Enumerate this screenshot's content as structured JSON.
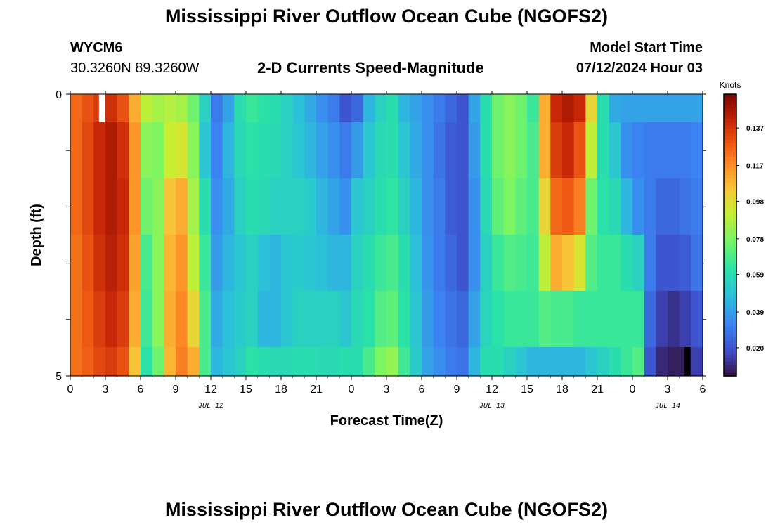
{
  "header": {
    "title": "Mississippi River Outflow Ocean Cube (NGOFS2)",
    "station": "WYCM6",
    "coordinates": "30.3260N  89.3260W",
    "subtitle": "2-D Currents Speed-Magnitude",
    "model_start_label": "Model Start Time",
    "model_start_value": "07/12/2024 Hour 03"
  },
  "footer": {
    "title": "Mississippi River Outflow Ocean Cube (NGOFS2)"
  },
  "chart_data": {
    "type": "heatmap",
    "title": "2-D Currents Speed-Magnitude",
    "xlabel": "Forecast Time(Z)",
    "ylabel": "Depth (ft)",
    "x_tick_labels": [
      "0",
      "3",
      "6",
      "9",
      "12",
      "15",
      "18",
      "21",
      "0",
      "3",
      "6",
      "9",
      "12",
      "15",
      "18",
      "21",
      "0",
      "3",
      "6"
    ],
    "x_hours_from_start": [
      0,
      3,
      6,
      9,
      12,
      15,
      18,
      21,
      24,
      27,
      30,
      33,
      36,
      39,
      42,
      45,
      48,
      51,
      54
    ],
    "xlim_hours": [
      0,
      54
    ],
    "date_labels": [
      {
        "label": "JUL 12",
        "hour": 12
      },
      {
        "label": "JUL 13",
        "hour": 36
      },
      {
        "label": "JUL 14",
        "hour": 51
      }
    ],
    "y_tick_labels": [
      "0",
      "5"
    ],
    "ylim_ft": [
      0,
      5
    ],
    "depth_levels_ft": [
      0.25,
      1.0,
      2.0,
      3.0,
      4.0,
      4.75
    ],
    "colorbar": {
      "label": "Knots",
      "tick_values": [
        0.02,
        0.039,
        0.059,
        0.078,
        0.098,
        0.117,
        0.137
      ],
      "tick_labels": [
        "0.020",
        "0.039",
        "0.059",
        "0.078",
        "0.098",
        "0.117",
        "0.137"
      ],
      "range": [
        0.005,
        0.155
      ]
    },
    "knots_by_hour": [
      {
        "h": 0,
        "v": [
          0.125,
          0.125,
          0.125,
          0.123,
          0.123,
          0.123
        ]
      },
      {
        "h": 1,
        "v": [
          0.13,
          0.132,
          0.132,
          0.13,
          0.128,
          0.127
        ]
      },
      {
        "h": 2,
        "v": [
          0.135,
          0.14,
          0.14,
          0.138,
          0.135,
          0.132
        ]
      },
      {
        "h": 3,
        "v": [
          0.138,
          0.145,
          0.145,
          0.143,
          0.14,
          0.135
        ]
      },
      {
        "h": 4,
        "v": [
          0.13,
          0.138,
          0.14,
          0.138,
          0.135,
          0.13
        ]
      },
      {
        "h": 5,
        "v": [
          0.11,
          0.115,
          0.115,
          0.112,
          0.11,
          0.105
        ]
      },
      {
        "h": 6,
        "v": [
          0.09,
          0.08,
          0.075,
          0.068,
          0.066,
          0.062
        ]
      },
      {
        "h": 7,
        "v": [
          0.085,
          0.078,
          0.08,
          0.08,
          0.08,
          0.075
        ]
      },
      {
        "h": 8,
        "v": [
          0.088,
          0.092,
          0.105,
          0.108,
          0.11,
          0.108
        ]
      },
      {
        "h": 9,
        "v": [
          0.085,
          0.095,
          0.11,
          0.115,
          0.118,
          0.12
        ]
      },
      {
        "h": 10,
        "v": [
          0.075,
          0.08,
          0.085,
          0.09,
          0.1,
          0.11
        ]
      },
      {
        "h": 11,
        "v": [
          0.055,
          0.05,
          0.06,
          0.065,
          0.068,
          0.068
        ]
      },
      {
        "h": 12,
        "v": [
          0.03,
          0.032,
          0.035,
          0.038,
          0.042,
          0.045
        ]
      },
      {
        "h": 13,
        "v": [
          0.04,
          0.045,
          0.042,
          0.045,
          0.048,
          0.05
        ]
      },
      {
        "h": 14,
        "v": [
          0.06,
          0.058,
          0.055,
          0.05,
          0.052,
          0.055
        ]
      },
      {
        "h": 15,
        "v": [
          0.065,
          0.062,
          0.06,
          0.055,
          0.055,
          0.062
        ]
      },
      {
        "h": 16,
        "v": [
          0.062,
          0.06,
          0.058,
          0.048,
          0.045,
          0.06
        ]
      },
      {
        "h": 17,
        "v": [
          0.06,
          0.058,
          0.055,
          0.045,
          0.045,
          0.058
        ]
      },
      {
        "h": 18,
        "v": [
          0.055,
          0.055,
          0.055,
          0.05,
          0.05,
          0.058
        ]
      },
      {
        "h": 19,
        "v": [
          0.048,
          0.05,
          0.055,
          0.052,
          0.055,
          0.06
        ]
      },
      {
        "h": 20,
        "v": [
          0.042,
          0.045,
          0.052,
          0.05,
          0.055,
          0.06
        ]
      },
      {
        "h": 21,
        "v": [
          0.035,
          0.04,
          0.045,
          0.048,
          0.055,
          0.058
        ]
      },
      {
        "h": 22,
        "v": [
          0.03,
          0.035,
          0.04,
          0.045,
          0.055,
          0.058
        ]
      },
      {
        "h": 23,
        "v": [
          0.02,
          0.03,
          0.035,
          0.045,
          0.05,
          0.06
        ]
      },
      {
        "h": 24,
        "v": [
          0.025,
          0.038,
          0.05,
          0.055,
          0.058,
          0.06
        ]
      },
      {
        "h": 25,
        "v": [
          0.045,
          0.05,
          0.055,
          0.06,
          0.062,
          0.068
        ]
      },
      {
        "h": 26,
        "v": [
          0.055,
          0.058,
          0.06,
          0.065,
          0.07,
          0.078
        ]
      },
      {
        "h": 27,
        "v": [
          0.06,
          0.06,
          0.063,
          0.068,
          0.072,
          0.082
        ]
      },
      {
        "h": 28,
        "v": [
          0.045,
          0.05,
          0.055,
          0.06,
          0.062,
          0.066
        ]
      },
      {
        "h": 29,
        "v": [
          0.04,
          0.042,
          0.045,
          0.048,
          0.05,
          0.052
        ]
      },
      {
        "h": 30,
        "v": [
          0.035,
          0.035,
          0.035,
          0.036,
          0.038,
          0.04
        ]
      },
      {
        "h": 31,
        "v": [
          0.03,
          0.028,
          0.03,
          0.03,
          0.032,
          0.035
        ]
      },
      {
        "h": 32,
        "v": [
          0.025,
          0.022,
          0.022,
          0.025,
          0.028,
          0.03
        ]
      },
      {
        "h": 33,
        "v": [
          0.02,
          0.02,
          0.02,
          0.02,
          0.025,
          0.028
        ]
      },
      {
        "h": 34,
        "v": [
          0.04,
          0.038,
          0.035,
          0.035,
          0.04,
          0.045
        ]
      },
      {
        "h": 35,
        "v": [
          0.06,
          0.06,
          0.058,
          0.055,
          0.056,
          0.06
        ]
      },
      {
        "h": 36,
        "v": [
          0.075,
          0.075,
          0.072,
          0.065,
          0.062,
          0.06
        ]
      },
      {
        "h": 37,
        "v": [
          0.08,
          0.08,
          0.078,
          0.07,
          0.065,
          0.055
        ]
      },
      {
        "h": 38,
        "v": [
          0.075,
          0.075,
          0.072,
          0.068,
          0.065,
          0.05
        ]
      },
      {
        "h": 39,
        "v": [
          0.065,
          0.068,
          0.068,
          0.066,
          0.065,
          0.045
        ]
      },
      {
        "h": 40,
        "v": [
          0.11,
          0.11,
          0.1,
          0.09,
          0.07,
          0.045
        ]
      },
      {
        "h": 41,
        "v": [
          0.14,
          0.135,
          0.125,
          0.11,
          0.068,
          0.045
        ]
      },
      {
        "h": 42,
        "v": [
          0.145,
          0.14,
          0.128,
          0.105,
          0.068,
          0.045
        ]
      },
      {
        "h": 43,
        "v": [
          0.14,
          0.13,
          0.12,
          0.095,
          0.065,
          0.045
        ]
      },
      {
        "h": 44,
        "v": [
          0.1,
          0.09,
          0.075,
          0.07,
          0.065,
          0.05
        ]
      },
      {
        "h": 45,
        "v": [
          0.06,
          0.06,
          0.062,
          0.065,
          0.065,
          0.055
        ]
      },
      {
        "h": 46,
        "v": [
          0.042,
          0.05,
          0.058,
          0.065,
          0.065,
          0.06
        ]
      },
      {
        "h": 47,
        "v": [
          0.04,
          0.035,
          0.045,
          0.06,
          0.065,
          0.065
        ]
      },
      {
        "h": 48,
        "v": [
          0.04,
          0.032,
          0.035,
          0.055,
          0.065,
          0.07
        ]
      },
      {
        "h": 49,
        "v": [
          0.04,
          0.03,
          0.03,
          0.03,
          0.025,
          0.02
        ]
      },
      {
        "h": 50,
        "v": [
          0.04,
          0.03,
          0.025,
          0.02,
          0.015,
          0.01
        ]
      },
      {
        "h": 51,
        "v": [
          0.04,
          0.03,
          0.025,
          0.02,
          0.012,
          0.008
        ]
      },
      {
        "h": 52,
        "v": [
          0.04,
          0.03,
          0.028,
          0.022,
          0.015,
          0.008
        ]
      },
      {
        "h": 53,
        "v": [
          0.04,
          0.032,
          0.03,
          0.028,
          0.02,
          0.015
        ]
      }
    ],
    "missing_cells": [
      {
        "h": 2,
        "level": 0,
        "color": "#ffffff"
      },
      {
        "h": 52,
        "level": 5,
        "color": "#000000"
      }
    ]
  }
}
